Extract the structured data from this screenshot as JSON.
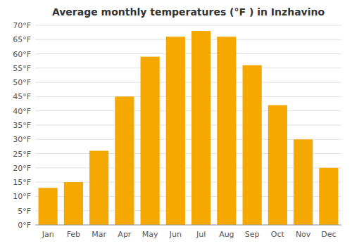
{
  "chart_data": {
    "type": "bar",
    "title": "Average monthly temperatures (°F ) in Inzhavino",
    "categories": [
      "Jan",
      "Feb",
      "Mar",
      "Apr",
      "May",
      "Jun",
      "Jul",
      "Aug",
      "Sep",
      "Oct",
      "Nov",
      "Dec"
    ],
    "values": [
      13,
      15,
      26,
      45,
      59,
      66,
      68,
      66,
      56,
      42,
      30,
      20
    ],
    "color": "#F5A800",
    "ylim": [
      0,
      70
    ],
    "yticks": [
      {
        "value": 0,
        "label": "0°F"
      },
      {
        "value": 5,
        "label": "5°F"
      },
      {
        "value": 10,
        "label": "10°F"
      },
      {
        "value": 15,
        "label": "15°F"
      },
      {
        "value": 20,
        "label": "20°F"
      },
      {
        "value": 25,
        "label": "25°F"
      },
      {
        "value": 30,
        "label": "30°F"
      },
      {
        "value": 35,
        "label": "35°F"
      },
      {
        "value": 40,
        "label": "40°F"
      },
      {
        "value": 45,
        "label": "45°F"
      },
      {
        "value": 50,
        "label": "50°F"
      },
      {
        "value": 55,
        "label": "55°F"
      },
      {
        "value": 60,
        "label": "60°F"
      },
      {
        "value": 65,
        "label": "65°F"
      },
      {
        "value": 70,
        "label": "70°F"
      }
    ],
    "grid": true
  }
}
